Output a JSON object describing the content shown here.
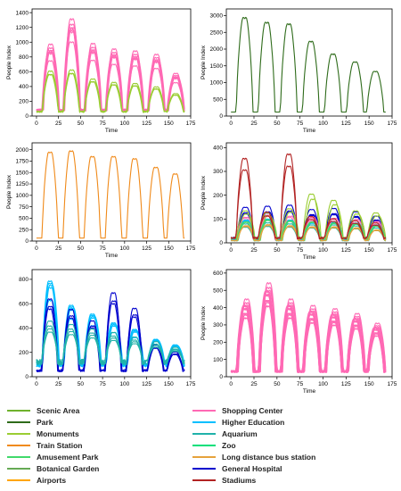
{
  "legend": [
    {
      "label": "Scenic Area",
      "color": "#6fb22c"
    },
    {
      "label": "Park",
      "color": "#2e6b1a"
    },
    {
      "label": "Monuments",
      "color": "#9acd32"
    },
    {
      "label": "Train Station",
      "color": "#f08a1a"
    },
    {
      "label": "Amusement Park",
      "color": "#41d96b"
    },
    {
      "label": "Botanical Garden",
      "color": "#66aa55"
    },
    {
      "label": "Airports",
      "color": "#ffa500"
    },
    {
      "label": "Shopping Center",
      "color": "#ff69b4"
    },
    {
      "label": "Higher Education",
      "color": "#00bfff"
    },
    {
      "label": "Aquarium",
      "color": "#20b2aa"
    },
    {
      "label": "Zoo",
      "color": "#00e07a"
    },
    {
      "label": "Long distance bus station",
      "color": "#e6a23c"
    },
    {
      "label": "General Hospital",
      "color": "#0000cd"
    },
    {
      "label": "Stadiums",
      "color": "#b22222"
    }
  ],
  "chart_data": [
    {
      "type": "line",
      "xlabel": "Time",
      "ylabel": "People Index",
      "xlim": [
        -5,
        175
      ],
      "xticks": [
        0,
        25,
        50,
        75,
        100,
        125,
        150,
        175
      ],
      "ylim": [
        0,
        1450
      ],
      "yticks": [
        0,
        200,
        400,
        600,
        800,
        1000,
        1200,
        1400
      ],
      "series": [
        {
          "color": "#ff69b4",
          "peaks": [
            1050,
            1420,
            1060,
            980,
            950,
            900,
            620
          ],
          "base": 80,
          "count": 8
        },
        {
          "color": "#9acd32",
          "peaks": [
            780,
            800,
            640,
            580,
            560,
            500,
            380
          ],
          "base": 60,
          "count": 3
        }
      ]
    },
    {
      "type": "line",
      "xlabel": "Time",
      "ylabel": "People Index",
      "xlim": [
        -5,
        175
      ],
      "xticks": [
        0,
        25,
        50,
        75,
        100,
        125,
        150,
        175
      ],
      "ylim": [
        0,
        3200
      ],
      "yticks": [
        0,
        500,
        1000,
        1500,
        2000,
        2500,
        3000
      ],
      "series": [
        {
          "color": "#2e6b1a",
          "peaks": [
            3100,
            2950,
            2900,
            2350,
            1950,
            1700,
            1400
          ],
          "base": 150,
          "count": 1
        }
      ]
    },
    {
      "type": "line",
      "xlabel": "Time",
      "ylabel": "People Index",
      "xlim": [
        -5,
        175
      ],
      "xticks": [
        0,
        25,
        50,
        75,
        100,
        125,
        150,
        175
      ],
      "ylim": [
        0,
        2150
      ],
      "yticks": [
        0,
        250,
        500,
        750,
        1000,
        1250,
        1500,
        1750,
        2000
      ],
      "series": [
        {
          "color": "#f08a1a",
          "peaks": [
            2050,
            2080,
            1950,
            1950,
            1900,
            1700,
            1550
          ],
          "base": 80,
          "count": 1
        }
      ]
    },
    {
      "type": "line",
      "xlabel": "Time",
      "ylabel": "People Index",
      "xlim": [
        -5,
        175
      ],
      "xticks": [
        0,
        25,
        50,
        75,
        100,
        125,
        150,
        175
      ],
      "ylim": [
        0,
        420
      ],
      "yticks": [
        0,
        100,
        200,
        300,
        400
      ],
      "series": [
        {
          "color": "#0000cd",
          "peaks": [
            160,
            165,
            170,
            150,
            155,
            140,
            120
          ],
          "base": 20,
          "count": 3
        },
        {
          "color": "#ff69b4",
          "peaks": [
            120,
            130,
            125,
            120,
            115,
            110,
            100
          ],
          "base": 15,
          "count": 4
        },
        {
          "color": "#00bfff",
          "peaks": [
            110,
            115,
            110,
            100,
            100,
            95,
            85
          ],
          "base": 15,
          "count": 3
        },
        {
          "color": "#20b2aa",
          "peaks": [
            90,
            95,
            90,
            85,
            85,
            80,
            70
          ],
          "base": 10,
          "count": 2
        },
        {
          "color": "#9acd32",
          "peaks": [
            150,
            140,
            160,
            230,
            200,
            150,
            140
          ],
          "base": 20,
          "count": 2
        },
        {
          "color": "#41d96b",
          "peaks": [
            100,
            110,
            105,
            100,
            95,
            90,
            80
          ],
          "base": 10,
          "count": 2
        },
        {
          "color": "#e6a23c",
          "peaks": [
            80,
            85,
            80,
            75,
            75,
            70,
            60
          ],
          "base": 10,
          "count": 2
        },
        {
          "color": "#b22222",
          "peaks": [
            390,
            140,
            410,
            120,
            110,
            100,
            90
          ],
          "base": 20,
          "count": 2
        }
      ]
    },
    {
      "type": "line",
      "xlabel": "",
      "ylabel": "",
      "xlim": [
        -5,
        175
      ],
      "xticks": [
        0,
        25,
        50,
        75,
        100,
        125,
        150,
        175
      ],
      "ylim": [
        0,
        880
      ],
      "yticks": [
        0,
        200,
        400,
        600,
        800
      ],
      "series": [
        {
          "color": "#00bfff",
          "peaks": [
            860,
            640,
            560,
            480,
            420,
            330,
            280
          ],
          "base": 100,
          "count": 5
        },
        {
          "color": "#0000cd",
          "peaks": [
            740,
            640,
            530,
            800,
            650,
            300,
            230
          ],
          "base": 50,
          "count": 3
        },
        {
          "color": "#20b2aa",
          "peaks": [
            480,
            450,
            410,
            380,
            340,
            300,
            250
          ],
          "base": 120,
          "count": 4
        }
      ]
    },
    {
      "type": "line",
      "xlabel": "Time",
      "ylabel": "People Index",
      "xlim": [
        -5,
        175
      ],
      "xticks": [
        0,
        25,
        50,
        75,
        100,
        125,
        150,
        175
      ],
      "ylim": [
        0,
        620
      ],
      "yticks": [
        0,
        100,
        200,
        300,
        400,
        500,
        600
      ],
      "series": [
        {
          "color": "#ff69b4",
          "peaks": [
            480,
            580,
            480,
            440,
            420,
            390,
            330
          ],
          "base": 30,
          "count": 14
        }
      ]
    }
  ]
}
